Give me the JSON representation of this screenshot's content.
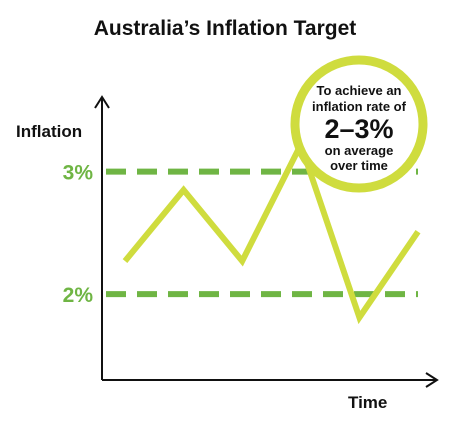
{
  "chart_data": {
    "type": "line",
    "title": "Australia’s Inflation Target",
    "ylabel": "Inflation",
    "xlabel": "Time",
    "ylim": [
      1.3,
      3.6
    ],
    "yticks": [
      {
        "value": 2,
        "label": "2%"
      },
      {
        "value": 3,
        "label": "3%"
      }
    ],
    "x": [
      0,
      1,
      2,
      3,
      4,
      5
    ],
    "series": [
      {
        "values": [
          2.27,
          2.85,
          2.27,
          3.22,
          1.81,
          2.51
        ]
      }
    ],
    "target_band": [
      2,
      3
    ],
    "annotation": {
      "line1": "To achieve an",
      "line2": "inflation rate of",
      "line3": "2–3%",
      "line4": "on average",
      "line5": "over time"
    },
    "colors": {
      "series": "#cfdc3e",
      "target_lines": "#6fb544",
      "tick_labels": "#6fb544",
      "callout_ring": "#cfdc3e",
      "axis": "#111111"
    },
    "grid": false
  }
}
